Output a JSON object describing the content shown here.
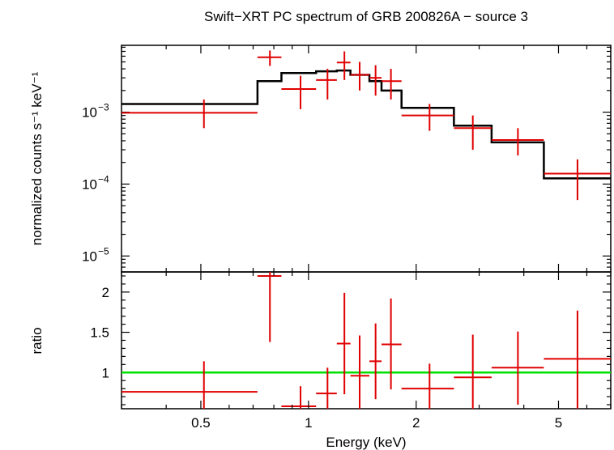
{
  "chart_data": {
    "type": "scatter",
    "title": "Swift−XRT PC spectrum of GRB 200826A − source 3",
    "xlabel": "Energy (keV)",
    "x_scale": "log",
    "xlim": [
      0.3,
      7.0
    ],
    "x_ticks": [
      {
        "value": 0.5,
        "label": "0.5"
      },
      {
        "value": 1,
        "label": "1"
      },
      {
        "value": 2,
        "label": "2"
      },
      {
        "value": 5,
        "label": "5"
      }
    ],
    "top_panel": {
      "ylabel": "normalized counts s⁻¹ keV⁻¹",
      "y_scale": "log",
      "ylim": [
        6e-06,
        0.0085
      ],
      "y_ticks": [
        {
          "value": 0.001,
          "base": "10",
          "exp": "−3"
        },
        {
          "value": 0.0001,
          "base": "10",
          "exp": "−4"
        },
        {
          "value": 1e-05,
          "base": "10",
          "exp": "−5"
        }
      ],
      "data": [
        {
          "x_lo": 0.3,
          "x_hi": 0.72,
          "x": 0.51,
          "y": 0.00098,
          "y_lo": 0.0006,
          "y_hi": 0.0015
        },
        {
          "x_lo": 0.72,
          "x_hi": 0.84,
          "x": 0.78,
          "y": 0.0058,
          "y_lo": 0.0044,
          "y_hi": 0.0072
        },
        {
          "x_lo": 0.84,
          "x_hi": 1.05,
          "x": 0.95,
          "y": 0.0021,
          "y_lo": 0.0011,
          "y_hi": 0.0032
        },
        {
          "x_lo": 1.05,
          "x_hi": 1.2,
          "x": 1.13,
          "y": 0.0028,
          "y_lo": 0.0015,
          "y_hi": 0.004
        },
        {
          "x_lo": 1.2,
          "x_hi": 1.31,
          "x": 1.26,
          "y": 0.0049,
          "y_lo": 0.0028,
          "y_hi": 0.007
        },
        {
          "x_lo": 1.31,
          "x_hi": 1.48,
          "x": 1.39,
          "y": 0.0033,
          "y_lo": 0.002,
          "y_hi": 0.005
        },
        {
          "x_lo": 1.48,
          "x_hi": 1.6,
          "x": 1.54,
          "y": 0.003,
          "y_lo": 0.0017,
          "y_hi": 0.0045
        },
        {
          "x_lo": 1.6,
          "x_hi": 1.82,
          "x": 1.7,
          "y": 0.0027,
          "y_lo": 0.0015,
          "y_hi": 0.004
        },
        {
          "x_lo": 1.82,
          "x_hi": 2.55,
          "x": 2.18,
          "y": 0.0009,
          "y_lo": 0.00055,
          "y_hi": 0.0013
        },
        {
          "x_lo": 2.55,
          "x_hi": 3.25,
          "x": 2.88,
          "y": 0.0006,
          "y_lo": 0.0003,
          "y_hi": 0.0009
        },
        {
          "x_lo": 3.25,
          "x_hi": 4.55,
          "x": 3.85,
          "y": 0.00041,
          "y_lo": 0.00025,
          "y_hi": 0.0006
        },
        {
          "x_lo": 4.55,
          "x_hi": 7.0,
          "x": 5.65,
          "y": 0.00014,
          "y_lo": 6e-05,
          "y_hi": 0.00022
        }
      ],
      "model_steps": [
        {
          "x_lo": 0.3,
          "x_hi": 0.72,
          "y": 0.0013
        },
        {
          "x_lo": 0.72,
          "x_hi": 0.84,
          "y": 0.0027
        },
        {
          "x_lo": 0.84,
          "x_hi": 1.05,
          "y": 0.0035
        },
        {
          "x_lo": 1.05,
          "x_hi": 1.2,
          "y": 0.0037
        },
        {
          "x_lo": 1.2,
          "x_hi": 1.31,
          "y": 0.0038
        },
        {
          "x_lo": 1.31,
          "x_hi": 1.48,
          "y": 0.0033
        },
        {
          "x_lo": 1.48,
          "x_hi": 1.6,
          "y": 0.0027
        },
        {
          "x_lo": 1.6,
          "x_hi": 1.82,
          "y": 0.002
        },
        {
          "x_lo": 1.82,
          "x_hi": 2.55,
          "y": 0.00115
        },
        {
          "x_lo": 2.55,
          "x_hi": 3.25,
          "y": 0.00065
        },
        {
          "x_lo": 3.25,
          "x_hi": 4.55,
          "y": 0.00038
        },
        {
          "x_lo": 4.55,
          "x_hi": 7.0,
          "y": 0.00012
        }
      ]
    },
    "bottom_panel": {
      "ylabel": "ratio",
      "y_scale": "linear",
      "ylim": [
        0.55,
        2.25
      ],
      "y_ticks": [
        {
          "value": 1,
          "label": "1"
        },
        {
          "value": 1.5,
          "label": "1.5"
        },
        {
          "value": 2,
          "label": "2"
        }
      ],
      "reference_line": 1,
      "data": [
        {
          "x_lo": 0.3,
          "x_hi": 0.72,
          "x": 0.51,
          "y": 0.76,
          "y_lo": 0.55,
          "y_hi": 1.14
        },
        {
          "x_lo": 0.72,
          "x_hi": 0.84,
          "x": 0.78,
          "y": 2.2,
          "y_lo": 1.38,
          "y_hi": 2.25
        },
        {
          "x_lo": 0.84,
          "x_hi": 1.05,
          "x": 0.95,
          "y": 0.58,
          "y_lo": 0.55,
          "y_hi": 0.83
        },
        {
          "x_lo": 1.05,
          "x_hi": 1.2,
          "x": 1.13,
          "y": 0.74,
          "y_lo": 0.55,
          "y_hi": 1.06
        },
        {
          "x_lo": 1.2,
          "x_hi": 1.31,
          "x": 1.26,
          "y": 1.36,
          "y_lo": 0.73,
          "y_hi": 1.99
        },
        {
          "x_lo": 1.31,
          "x_hi": 1.48,
          "x": 1.39,
          "y": 0.96,
          "y_lo": 0.55,
          "y_hi": 1.46
        },
        {
          "x_lo": 1.48,
          "x_hi": 1.6,
          "x": 1.54,
          "y": 1.14,
          "y_lo": 0.67,
          "y_hi": 1.61
        },
        {
          "x_lo": 1.6,
          "x_hi": 1.82,
          "x": 1.7,
          "y": 1.35,
          "y_lo": 0.79,
          "y_hi": 1.92
        },
        {
          "x_lo": 1.82,
          "x_hi": 2.55,
          "x": 2.18,
          "y": 0.8,
          "y_lo": 0.55,
          "y_hi": 1.11
        },
        {
          "x_lo": 2.55,
          "x_hi": 3.25,
          "x": 2.88,
          "y": 0.94,
          "y_lo": 0.55,
          "y_hi": 1.47
        },
        {
          "x_lo": 3.25,
          "x_hi": 4.55,
          "x": 3.85,
          "y": 1.06,
          "y_lo": 0.6,
          "y_hi": 1.51
        },
        {
          "x_lo": 4.55,
          "x_hi": 7.0,
          "x": 5.65,
          "y": 1.17,
          "y_lo": 0.55,
          "y_hi": 1.77
        }
      ]
    },
    "colors": {
      "data": "#e00000",
      "model": "#000000",
      "ratio_line": "#00e000",
      "axes": "#000000"
    },
    "grid": false,
    "legend": "none"
  }
}
